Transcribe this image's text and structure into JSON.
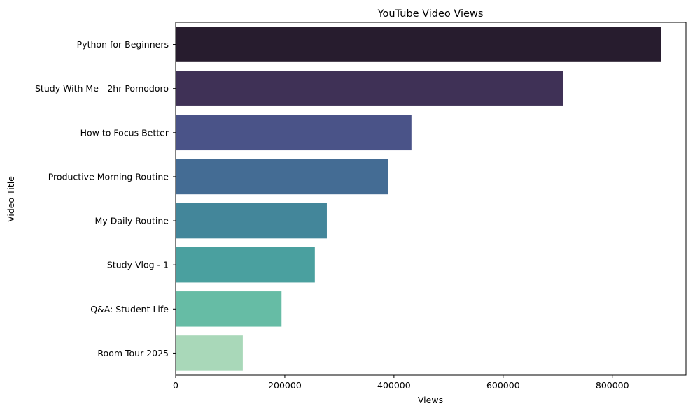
{
  "chart_data": {
    "type": "bar",
    "orientation": "horizontal",
    "title": "YouTube Video Views",
    "xlabel": "Views",
    "ylabel": "Video Title",
    "categories": [
      "Python for Beginners",
      "Study With Me - 2hr Pomodoro",
      "How to Focus Better",
      "Productive Morning Routine",
      "My Daily Routine",
      "Study Vlog - 1",
      "Q&A: Student Life",
      "Room Tour 2025"
    ],
    "values": [
      890000,
      710000,
      432000,
      389000,
      277000,
      255000,
      194000,
      123000
    ],
    "colors": [
      "#271c2e",
      "#3f3156",
      "#4a5388",
      "#446c94",
      "#43869a",
      "#4aa09f",
      "#66bca5",
      "#a9d8b9"
    ],
    "xlim": [
      0,
      935000
    ],
    "xticks": [
      0,
      200000,
      400000,
      600000,
      800000
    ],
    "xtick_labels": [
      "0",
      "200000",
      "400000",
      "600000",
      "800000"
    ],
    "grid": false,
    "legend": false
  }
}
